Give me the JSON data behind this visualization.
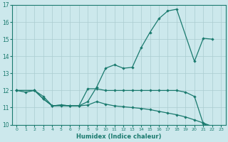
{
  "xlabel": "Humidex (Indice chaleur)",
  "bg_color": "#cce8ec",
  "grid_color": "#aaccd0",
  "line_color": "#1a7a6e",
  "xlim": [
    -0.5,
    23.5
  ],
  "ylim": [
    10,
    17
  ],
  "yticks": [
    10,
    11,
    12,
    13,
    14,
    15,
    16,
    17
  ],
  "xticks": [
    0,
    1,
    2,
    3,
    4,
    5,
    6,
    7,
    8,
    9,
    10,
    11,
    12,
    13,
    14,
    15,
    16,
    17,
    18,
    19,
    20,
    21,
    22,
    23
  ],
  "upper_x": [
    0,
    2,
    3,
    4,
    5,
    6,
    7,
    8,
    9,
    10,
    11,
    12,
    13,
    14,
    15,
    16,
    17,
    18,
    20,
    21,
    22
  ],
  "upper_y": [
    12.0,
    12.0,
    11.5,
    11.1,
    11.15,
    11.1,
    11.1,
    11.35,
    12.2,
    13.3,
    13.5,
    13.3,
    13.35,
    14.5,
    15.4,
    16.2,
    16.65,
    16.75,
    13.7,
    15.05,
    15.0
  ],
  "mid_x": [
    0,
    1,
    2,
    3,
    4,
    5,
    6,
    7,
    8,
    9,
    10,
    11,
    12,
    13,
    14,
    15,
    16,
    17,
    18,
    19,
    20,
    21,
    22,
    23
  ],
  "mid_y": [
    12.0,
    11.9,
    12.0,
    11.65,
    11.1,
    11.1,
    11.1,
    11.1,
    12.1,
    12.1,
    12.0,
    12.0,
    12.0,
    12.0,
    12.0,
    12.0,
    12.0,
    12.0,
    12.0,
    11.9,
    11.65,
    10.05,
    9.85,
    9.8
  ],
  "low_x": [
    0,
    2,
    3,
    4,
    5,
    6,
    7,
    8,
    9,
    10,
    11,
    12,
    13,
    14,
    15,
    16,
    17,
    18,
    19,
    20,
    21,
    22,
    23
  ],
  "low_y": [
    12.0,
    12.0,
    11.5,
    11.1,
    11.15,
    11.1,
    11.1,
    11.15,
    11.35,
    11.2,
    11.1,
    11.05,
    11.0,
    10.95,
    10.88,
    10.78,
    10.68,
    10.58,
    10.45,
    10.28,
    10.1,
    9.9,
    9.8
  ]
}
